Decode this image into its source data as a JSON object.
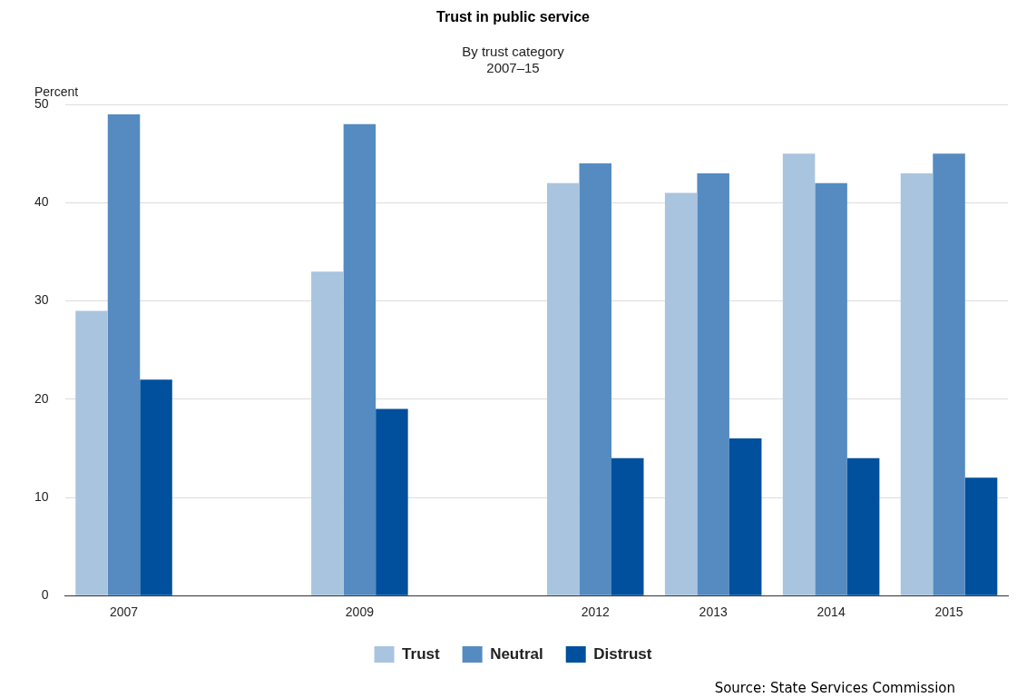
{
  "chart_data": {
    "type": "bar",
    "title": "Trust in public service",
    "subtitle": "By trust category\n2007–15",
    "ylabel": "Percent",
    "categories": [
      "2007",
      null,
      "2009",
      null,
      "2012",
      "2013",
      "2014",
      "2015"
    ],
    "series": [
      {
        "name": "Trust",
        "color": "#a9c4df",
        "values": [
          29,
          null,
          33,
          null,
          42,
          41,
          45,
          43
        ]
      },
      {
        "name": "Neutral",
        "color": "#558bc1",
        "values": [
          49,
          null,
          48,
          null,
          44,
          43,
          42,
          45
        ]
      },
      {
        "name": "Distrust",
        "color": "#00509d",
        "values": [
          22,
          null,
          19,
          null,
          14,
          16,
          14,
          12
        ]
      }
    ],
    "ylim": [
      0,
      50
    ],
    "yticks": [
      0,
      10,
      20,
      30,
      40,
      50
    ],
    "grid": "y",
    "legend": "bottom",
    "annotations": [
      "Source: State Services Commission"
    ]
  }
}
